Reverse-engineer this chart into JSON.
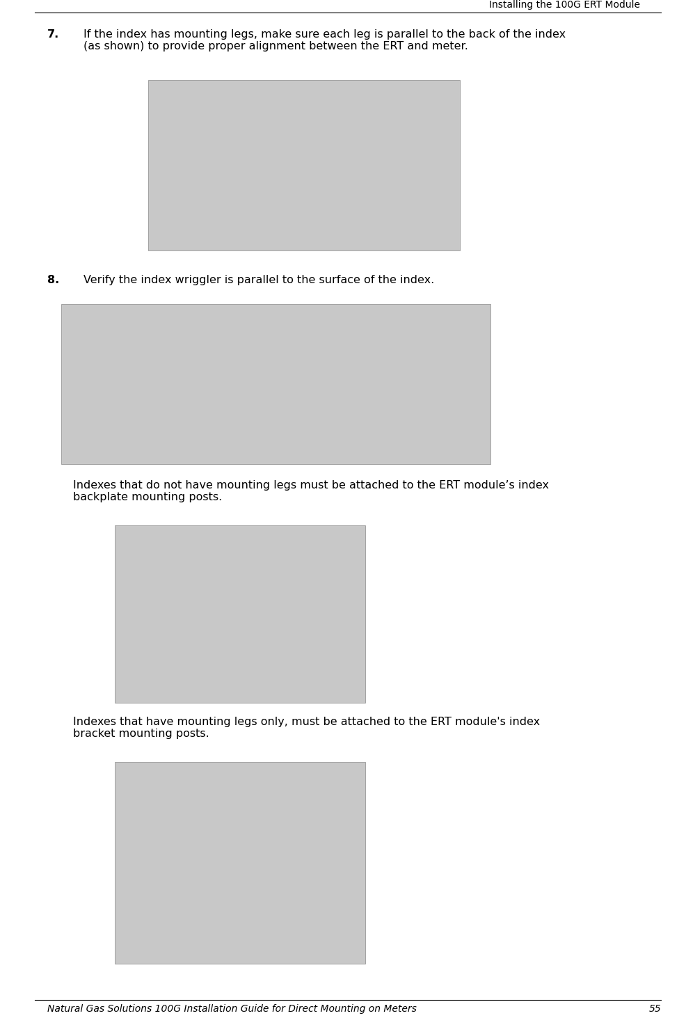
{
  "page_width": 9.87,
  "page_height": 14.63,
  "dpi": 100,
  "bg_color": "#ffffff",
  "header_text": "Installing the 100G ERT Module",
  "footer_text": "Natural Gas Solutions 100G Installation Guide for Direct Mounting on Meters",
  "footer_page": "55",
  "step7_number": "7.",
  "step7_text": "If the index has mounting legs, make sure each leg is parallel to the back of the index\n(as shown) to provide proper alignment between the ERT and meter.",
  "step8_number": "8.",
  "step8_text": "Verify the index wriggler is parallel to the surface of the index.",
  "para1_text": "Indexes that do not have mounting legs must be attached to the ERT module’s index\nbackplate mounting posts.",
  "para2_text": "Indexes that have mounting legs only, must be attached to the ERT module's index\nbracket mounting posts.",
  "font_size_body": 11.5,
  "font_size_step": 11.5,
  "font_size_header": 10.0,
  "font_size_footer": 10.0,
  "img_placeholder_color": "#c8c8c8",
  "img_border_color": "#888888",
  "line_color": "#000000",
  "text_color": "#000000",
  "header_line_yp": 18,
  "footer_line_yp": 1437,
  "step7_text_yp": 42,
  "img1_xp": 213,
  "img1_yp": 115,
  "img1_wp": 448,
  "img1_hp": 245,
  "step8_text_yp": 395,
  "img2_xp": 88,
  "img2_yp": 437,
  "img2_wp": 617,
  "img2_hp": 230,
  "para1_text_yp": 690,
  "img3_xp": 165,
  "img3_yp": 755,
  "img3_wp": 360,
  "img3_hp": 255,
  "para2_text_yp": 1030,
  "img4_xp": 165,
  "img4_yp": 1095,
  "img4_wp": 360,
  "img4_hp": 290,
  "step7_num_xp": 68,
  "step7_txt_xp": 120,
  "step8_num_xp": 68,
  "step8_txt_xp": 120,
  "para_xp": 105,
  "header_txt_xp": 920,
  "footer_txt_xp": 68,
  "footer_page_xp": 950
}
